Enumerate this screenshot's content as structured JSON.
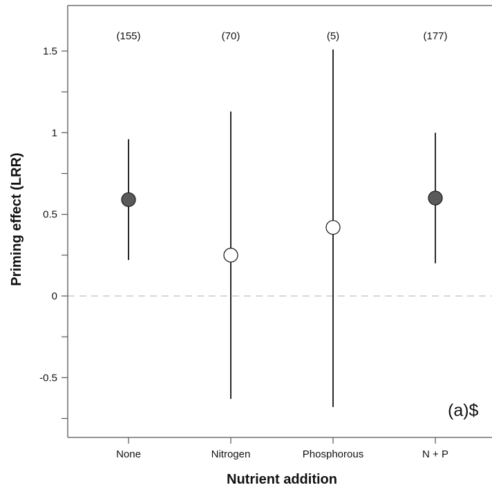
{
  "chart_data": {
    "type": "scatter",
    "xlabel": "Nutrient addition",
    "ylabel": "Priming effect (LRR)",
    "panel_label": "(a)$",
    "categories": [
      "None",
      "Nitrogen",
      "Phosphorous",
      "N + P"
    ],
    "sample_sizes": [
      "(155)",
      "(70)",
      "(5)",
      "(177)"
    ],
    "points": [
      {
        "category": "None",
        "mean": 0.59,
        "ci_low": 0.22,
        "ci_high": 0.96,
        "filled": true
      },
      {
        "category": "Nitrogen",
        "mean": 0.25,
        "ci_low": -0.63,
        "ci_high": 1.13,
        "filled": false
      },
      {
        "category": "Phosphorous",
        "mean": 0.42,
        "ci_low": -0.68,
        "ci_high": 1.51,
        "filled": false
      },
      {
        "category": "N + P",
        "mean": 0.6,
        "ci_low": 0.2,
        "ci_high": 1.0,
        "filled": true
      }
    ],
    "yticks": [
      {
        "value": 1.5,
        "label": "1.5"
      },
      {
        "value": 1.0,
        "label": "1"
      },
      {
        "value": 0.5,
        "label": "0.5"
      },
      {
        "value": 0.0,
        "label": "0"
      },
      {
        "value": -0.5,
        "label": "-0.5"
      }
    ],
    "ylim": [
      -0.86,
      1.78
    ],
    "reference_line": 0,
    "colors": {
      "filled_point": "#5a5a5a",
      "open_point": "#ffffff",
      "line": "#111111",
      "reference": "#c8c8c8",
      "axis": "#555555"
    }
  }
}
